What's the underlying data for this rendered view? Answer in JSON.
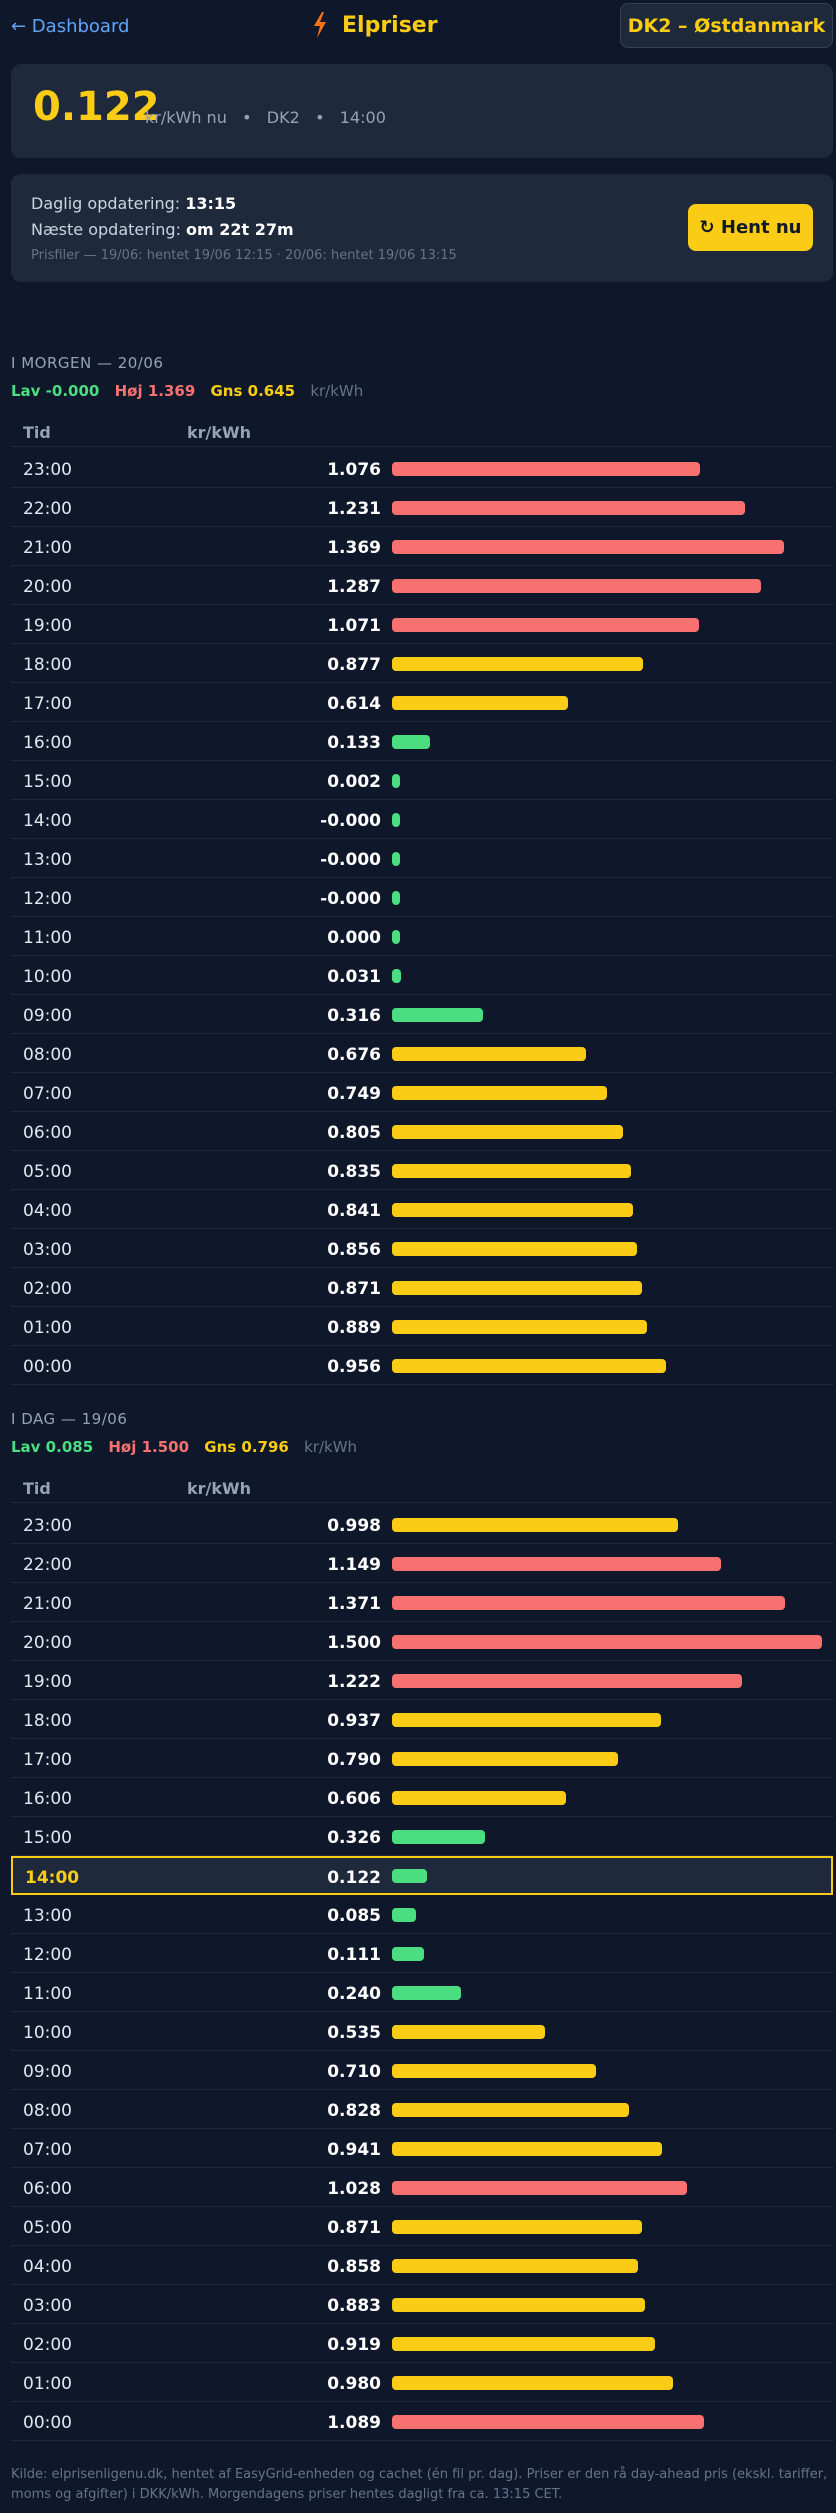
{
  "header": {
    "back_label": "← Dashboard",
    "title": "Elpriser",
    "region": "DK2 – Østdanmark"
  },
  "current": {
    "price": "0.122",
    "unit": "kr/kWh nu",
    "region": "DK2",
    "hour": "14:00"
  },
  "update": {
    "daily_label": "Daglig opdatering:",
    "daily_time": "13:15",
    "next_label": "Næste opdatering:",
    "next_value": "om 22t 27m",
    "files": "Prisfiler — 19/06: hentet 19/06 12:15 · 20/06: hentet 19/06 13:15",
    "button": "↻ Hent nu"
  },
  "colors": {
    "green": "#4ade80",
    "yellow": "#facc15",
    "red": "#f87171"
  },
  "table_headers": {
    "time": "Tid",
    "price": "kr/kWh"
  },
  "tomorrow": {
    "title": "I MORGEN — 20/06",
    "lav": "Lav -0.000",
    "hoj": "Høj 1.369",
    "gns": "Gns 0.645",
    "unit": "kr/kWh",
    "rows": [
      {
        "time": "23:00",
        "price": "1.076",
        "value": 1.076,
        "level": "red"
      },
      {
        "time": "22:00",
        "price": "1.231",
        "value": 1.231,
        "level": "red"
      },
      {
        "time": "21:00",
        "price": "1.369",
        "value": 1.369,
        "level": "red"
      },
      {
        "time": "20:00",
        "price": "1.287",
        "value": 1.287,
        "level": "red"
      },
      {
        "time": "19:00",
        "price": "1.071",
        "value": 1.071,
        "level": "red"
      },
      {
        "time": "18:00",
        "price": "0.877",
        "value": 0.877,
        "level": "yellow"
      },
      {
        "time": "17:00",
        "price": "0.614",
        "value": 0.614,
        "level": "yellow"
      },
      {
        "time": "16:00",
        "price": "0.133",
        "value": 0.133,
        "level": "green"
      },
      {
        "time": "15:00",
        "price": "0.002",
        "value": 0.002,
        "level": "green"
      },
      {
        "time": "14:00",
        "price": "-0.000",
        "value": 0.0,
        "level": "green"
      },
      {
        "time": "13:00",
        "price": "-0.000",
        "value": 0.0,
        "level": "green"
      },
      {
        "time": "12:00",
        "price": "-0.000",
        "value": 0.0,
        "level": "green"
      },
      {
        "time": "11:00",
        "price": "0.000",
        "value": 0.0,
        "level": "green"
      },
      {
        "time": "10:00",
        "price": "0.031",
        "value": 0.031,
        "level": "green"
      },
      {
        "time": "09:00",
        "price": "0.316",
        "value": 0.316,
        "level": "green"
      },
      {
        "time": "08:00",
        "price": "0.676",
        "value": 0.676,
        "level": "yellow"
      },
      {
        "time": "07:00",
        "price": "0.749",
        "value": 0.749,
        "level": "yellow"
      },
      {
        "time": "06:00",
        "price": "0.805",
        "value": 0.805,
        "level": "yellow"
      },
      {
        "time": "05:00",
        "price": "0.835",
        "value": 0.835,
        "level": "yellow"
      },
      {
        "time": "04:00",
        "price": "0.841",
        "value": 0.841,
        "level": "yellow"
      },
      {
        "time": "03:00",
        "price": "0.856",
        "value": 0.856,
        "level": "yellow"
      },
      {
        "time": "02:00",
        "price": "0.871",
        "value": 0.871,
        "level": "yellow"
      },
      {
        "time": "01:00",
        "price": "0.889",
        "value": 0.889,
        "level": "yellow"
      },
      {
        "time": "00:00",
        "price": "0.956",
        "value": 0.956,
        "level": "yellow"
      }
    ]
  },
  "today": {
    "title": "I DAG — 19/06",
    "lav": "Lav 0.085",
    "hoj": "Høj 1.500",
    "gns": "Gns 0.796",
    "unit": "kr/kWh",
    "rows": [
      {
        "time": "23:00",
        "price": "0.998",
        "value": 0.998,
        "level": "yellow"
      },
      {
        "time": "22:00",
        "price": "1.149",
        "value": 1.149,
        "level": "red"
      },
      {
        "time": "21:00",
        "price": "1.371",
        "value": 1.371,
        "level": "red"
      },
      {
        "time": "20:00",
        "price": "1.500",
        "value": 1.5,
        "level": "red"
      },
      {
        "time": "19:00",
        "price": "1.222",
        "value": 1.222,
        "level": "red"
      },
      {
        "time": "18:00",
        "price": "0.937",
        "value": 0.937,
        "level": "yellow"
      },
      {
        "time": "17:00",
        "price": "0.790",
        "value": 0.79,
        "level": "yellow"
      },
      {
        "time": "16:00",
        "price": "0.606",
        "value": 0.606,
        "level": "yellow"
      },
      {
        "time": "15:00",
        "price": "0.326",
        "value": 0.326,
        "level": "green"
      },
      {
        "time": "14:00",
        "price": "0.122",
        "value": 0.122,
        "level": "green",
        "current": true
      },
      {
        "time": "13:00",
        "price": "0.085",
        "value": 0.085,
        "level": "green"
      },
      {
        "time": "12:00",
        "price": "0.111",
        "value": 0.111,
        "level": "green"
      },
      {
        "time": "11:00",
        "price": "0.240",
        "value": 0.24,
        "level": "green"
      },
      {
        "time": "10:00",
        "price": "0.535",
        "value": 0.535,
        "level": "yellow"
      },
      {
        "time": "09:00",
        "price": "0.710",
        "value": 0.71,
        "level": "yellow"
      },
      {
        "time": "08:00",
        "price": "0.828",
        "value": 0.828,
        "level": "yellow"
      },
      {
        "time": "07:00",
        "price": "0.941",
        "value": 0.941,
        "level": "yellow"
      },
      {
        "time": "06:00",
        "price": "1.028",
        "value": 1.028,
        "level": "red"
      },
      {
        "time": "05:00",
        "price": "0.871",
        "value": 0.871,
        "level": "yellow"
      },
      {
        "time": "04:00",
        "price": "0.858",
        "value": 0.858,
        "level": "yellow"
      },
      {
        "time": "03:00",
        "price": "0.883",
        "value": 0.883,
        "level": "yellow"
      },
      {
        "time": "02:00",
        "price": "0.919",
        "value": 0.919,
        "level": "yellow"
      },
      {
        "time": "01:00",
        "price": "0.980",
        "value": 0.98,
        "level": "yellow"
      },
      {
        "time": "00:00",
        "price": "1.089",
        "value": 1.089,
        "level": "red"
      }
    ]
  },
  "footer": "Kilde: elprisenligenu.dk, hentet af EasyGrid-enheden og cachet (én fil pr. dag). Priser er den rå day-ahead pris (ekskl. tariffer, moms og afgifter) i DKK/kWh. Morgendagens priser hentes dagligt fra ca. 13:15 CET."
}
